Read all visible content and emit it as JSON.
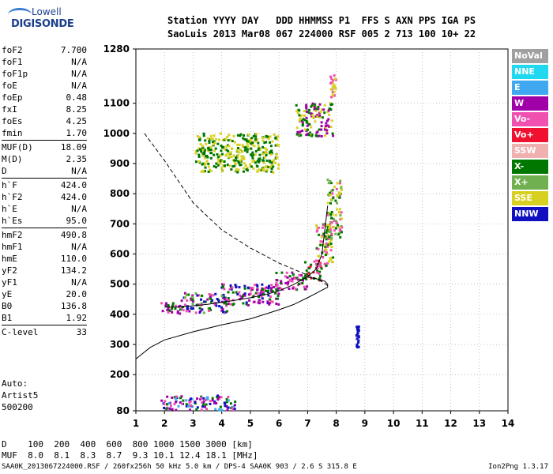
{
  "logo": {
    "line1": "Lowell",
    "line2": "DIGISONDE"
  },
  "header": {
    "row1": "Station YYYY DAY   DDD HHMMSS P1  FFS S AXN PPS IGA PS",
    "row2": "SaoLuis 2013 Mar08 067 224000 RSF 005 2 713 100 10+ 22"
  },
  "params": [
    [
      {
        "k": "foF2",
        "v": "7.700"
      },
      {
        "k": "foF1",
        "v": "N/A"
      },
      {
        "k": "foF1p",
        "v": "N/A"
      },
      {
        "k": "foE",
        "v": "N/A"
      },
      {
        "k": "foEp",
        "v": "0.48"
      },
      {
        "k": "fxI",
        "v": "8.25"
      },
      {
        "k": "foEs",
        "v": "4.25"
      },
      {
        "k": "fmin",
        "v": "1.70"
      }
    ],
    [
      {
        "k": "MUF(D)",
        "v": "18.09"
      },
      {
        "k": "M(D)",
        "v": "2.35"
      },
      {
        "k": "D",
        "v": "N/A"
      }
    ],
    [
      {
        "k": "h`F",
        "v": "424.0"
      },
      {
        "k": "h`F2",
        "v": "424.0"
      },
      {
        "k": "h`E",
        "v": "N/A"
      },
      {
        "k": "h`Es",
        "v": "95.0"
      }
    ],
    [
      {
        "k": "hmF2",
        "v": "490.8"
      },
      {
        "k": "hmF1",
        "v": "N/A"
      },
      {
        "k": "hmE",
        "v": "110.0"
      },
      {
        "k": "yF2",
        "v": "134.2"
      },
      {
        "k": "yF1",
        "v": "N/A"
      },
      {
        "k": "yE",
        "v": "20.0"
      },
      {
        "k": "B0",
        "v": "136.8"
      },
      {
        "k": "B1",
        "v": "1.92"
      }
    ],
    [
      {
        "k": "C-level",
        "v": "33"
      }
    ]
  ],
  "auto": {
    "line1": "Auto:",
    "line2": "Artist5",
    "line3": "500200"
  },
  "legend": [
    {
      "label": "NoVal",
      "color": "#a0a0a0"
    },
    {
      "label": "NNE",
      "color": "#20d8f0"
    },
    {
      "label": "E",
      "color": "#40a8f0"
    },
    {
      "label": "W",
      "color": "#a000a8"
    },
    {
      "label": "Vo-",
      "color": "#f050b0"
    },
    {
      "label": "Vo+",
      "color": "#f01030"
    },
    {
      "label": "SSW",
      "color": "#f0b0b0"
    },
    {
      "label": "X-",
      "color": "#007800"
    },
    {
      "label": "X+",
      "color": "#70b050"
    },
    {
      "label": "SSE",
      "color": "#d8d020"
    },
    {
      "label": "NNW",
      "color": "#1010c0"
    }
  ],
  "muf_table": {
    "row1": "D    100  200  400  600  800 1000 1500 3000 [km]",
    "row2": "MUF  8.0  8.1  8.3  8.7  9.3 10.1 12.4 18.1 [MHz]"
  },
  "footer": {
    "left": "SAA0K_2013067224000.RSF / 260fx256h 50 kHz 5.0 km / DPS-4 SAA0K 903 / 2.6 S 315.8 E",
    "right": "Ion2Png 1.3.17"
  },
  "chart_data": {
    "type": "scatter",
    "xlim": [
      1,
      14
    ],
    "ylim": [
      80,
      1280
    ],
    "x_ticks": [
      1,
      2,
      3,
      4,
      5,
      6,
      7,
      8,
      9,
      10,
      11,
      12,
      13,
      14
    ],
    "y_ticks": [
      80,
      200,
      300,
      400,
      500,
      600,
      700,
      800,
      900,
      1000,
      1100,
      1280
    ],
    "grid": true,
    "legend_placement": "right",
    "clusters": [
      {
        "x": [
          1.9,
          2.6
        ],
        "y": [
          400,
          440
        ],
        "colors": [
          "#f050b0",
          "#a000a8",
          "#007800"
        ]
      },
      {
        "x": [
          2.6,
          4.2
        ],
        "y": [
          405,
          470
        ],
        "colors": [
          "#f050b0",
          "#a000a8",
          "#007800",
          "#1010c0",
          "#70b050"
        ]
      },
      {
        "x": [
          4.0,
          6.0
        ],
        "y": [
          430,
          500
        ],
        "colors": [
          "#a000a8",
          "#f050b0",
          "#007800",
          "#1010c0"
        ]
      },
      {
        "x": [
          5.9,
          7.0
        ],
        "y": [
          480,
          540
        ],
        "colors": [
          "#a000a8",
          "#f050b0",
          "#007800"
        ]
      },
      {
        "x": [
          6.9,
          7.5
        ],
        "y": [
          510,
          580
        ],
        "colors": [
          "#f050b0",
          "#007800",
          "#f01030"
        ]
      },
      {
        "x": [
          7.3,
          7.9
        ],
        "y": [
          560,
          700
        ],
        "colors": [
          "#007800",
          "#f050b0",
          "#d8d020"
        ]
      },
      {
        "x": [
          7.7,
          8.2
        ],
        "y": [
          650,
          850
        ],
        "colors": [
          "#d8d020",
          "#f050b0",
          "#007800",
          "#70b050"
        ]
      },
      {
        "x": [
          3.1,
          6.0
        ],
        "y": [
          870,
          1000
        ],
        "colors": [
          "#d8d020",
          "#007800"
        ]
      },
      {
        "x": [
          6.6,
          7.9
        ],
        "y": [
          990,
          1100
        ],
        "colors": [
          "#d8d020",
          "#007800",
          "#a000a8"
        ]
      },
      {
        "x": [
          7.8,
          8.0
        ],
        "y": [
          1120,
          1200
        ],
        "colors": [
          "#d8d020",
          "#f050b0"
        ]
      },
      {
        "x": [
          1.9,
          4.5
        ],
        "y": [
          82,
          130
        ],
        "colors": [
          "#a000a8",
          "#f050b0",
          "#1010c0",
          "#007800",
          "#40a8f0"
        ]
      },
      {
        "x": [
          8.7,
          8.8
        ],
        "y": [
          290,
          360
        ],
        "colors": [
          "#1010c0"
        ]
      }
    ],
    "trace_points": {
      "x": [
        2.0,
        2.5,
        3.0,
        3.5,
        4.0,
        4.5,
        5.0,
        5.5,
        6.0,
        6.5,
        7.0,
        7.3,
        7.5,
        7.7
      ],
      "y": [
        424,
        424,
        428,
        433,
        440,
        447,
        455,
        465,
        478,
        498,
        525,
        550,
        600,
        760
      ]
    },
    "profile": {
      "x": [
        1.0,
        1.5,
        2.0,
        3.0,
        4.0,
        5.0,
        5.5,
        6.0,
        6.5,
        7.0,
        7.3,
        7.5,
        7.7,
        7.7,
        7.6,
        7.3,
        7.0
      ],
      "y": [
        252,
        290,
        315,
        342,
        365,
        385,
        400,
        415,
        432,
        455,
        470,
        480,
        490,
        500,
        510,
        518,
        523
      ]
    },
    "model_profile": {
      "x": [
        1.3,
        2.0,
        3.0,
        4.0,
        5.0,
        6.0,
        6.5,
        7.0,
        7.4,
        7.7
      ],
      "y": [
        1000,
        910,
        770,
        680,
        620,
        570,
        550,
        530,
        515,
        495
      ]
    }
  }
}
